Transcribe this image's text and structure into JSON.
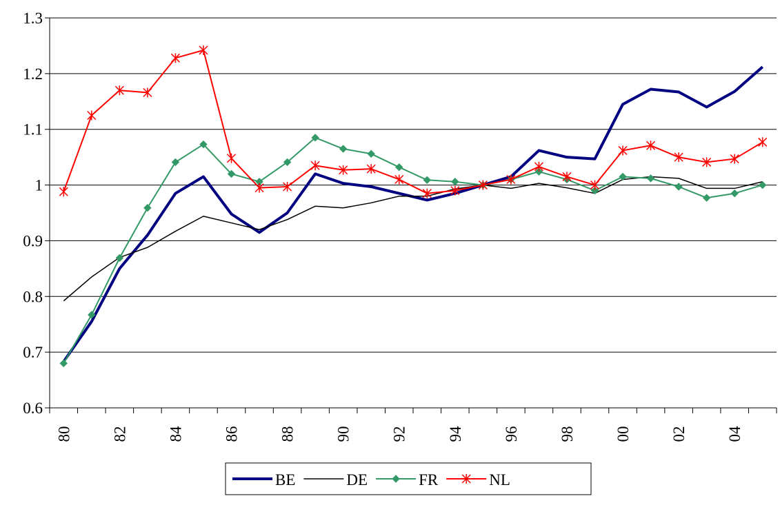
{
  "chart_data": {
    "type": "line",
    "categories": [
      "80",
      null,
      "82",
      null,
      "84",
      null,
      "86",
      null,
      "88",
      null,
      "90",
      null,
      "92",
      null,
      "94",
      null,
      "96",
      null,
      "98",
      null,
      "00",
      null,
      "02",
      null,
      "04",
      null
    ],
    "series": [
      {
        "name": "BE",
        "color": "#000080",
        "line_width": 4,
        "marker": "none",
        "values": [
          0.683,
          0.755,
          0.85,
          0.91,
          0.985,
          1.015,
          0.948,
          0.915,
          0.95,
          1.02,
          1.003,
          0.997,
          0.985,
          0.973,
          0.985,
          1.0,
          1.015,
          1.062,
          1.05,
          1.047,
          1.145,
          1.172,
          1.167,
          1.14,
          1.168,
          1.212
        ]
      },
      {
        "name": "DE",
        "color": "#000000",
        "line_width": 1.5,
        "marker": "none",
        "values": [
          0.792,
          0.835,
          0.87,
          0.888,
          0.917,
          0.944,
          0.932,
          0.92,
          0.938,
          0.962,
          0.959,
          0.968,
          0.98,
          0.98,
          0.993,
          1.0,
          0.994,
          1.003,
          0.995,
          0.985,
          1.01,
          1.015,
          1.012,
          0.994,
          0.994,
          1.006
        ]
      },
      {
        "name": "FR",
        "color": "#339966",
        "line_width": 2,
        "marker": "diamond",
        "values": [
          0.68,
          0.767,
          0.869,
          0.959,
          1.041,
          1.073,
          1.02,
          1.006,
          1.041,
          1.085,
          1.065,
          1.056,
          1.032,
          1.009,
          1.006,
          1.0,
          1.01,
          1.024,
          1.01,
          0.99,
          1.015,
          1.012,
          0.997,
          0.977,
          0.985,
          1.0
        ]
      },
      {
        "name": "NL",
        "color": "#ff0000",
        "line_width": 2,
        "marker": "asterisk",
        "values": [
          0.988,
          1.125,
          1.17,
          1.166,
          1.228,
          1.242,
          1.048,
          0.995,
          0.997,
          1.035,
          1.027,
          1.029,
          1.01,
          0.985,
          0.99,
          1.0,
          1.01,
          1.033,
          1.015,
          1.0,
          1.062,
          1.071,
          1.05,
          1.041,
          1.047,
          1.077
        ]
      }
    ],
    "ylim": [
      0.6,
      1.3
    ],
    "yticks": [
      0.6,
      0.7,
      0.8,
      0.9,
      1,
      1.1,
      1.2,
      1.3
    ],
    "grid": true,
    "legend": "bottom"
  }
}
